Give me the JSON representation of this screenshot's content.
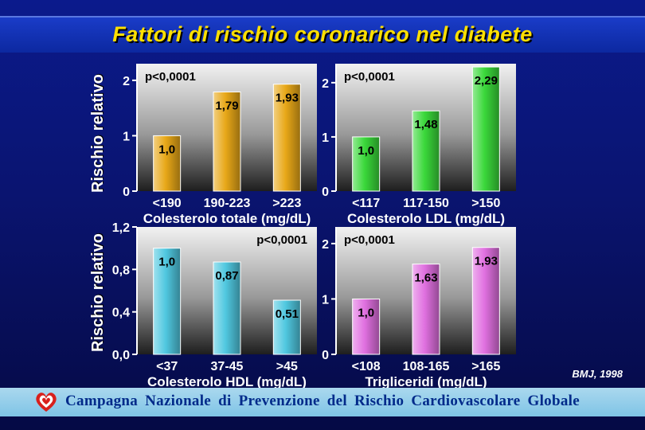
{
  "title": "Fattori di rischio coronarico nel diabete",
  "ylabel": "Rischio relativo",
  "citation": "BMJ, 1998",
  "footer": "Campagna Nazionale di Prevenzione del Rischio Cardiovascolare Globale",
  "chart_data": [
    {
      "type": "bar",
      "pvalue": "p<0,0001",
      "pvalue_position": "top-left",
      "xlabel": "Colesterolo totale (mg/dL)",
      "categories": [
        "<190",
        "190-223",
        ">223"
      ],
      "values": [
        1.0,
        1.79,
        1.93
      ],
      "value_labels": [
        "1,0",
        "1,79",
        "1,93"
      ],
      "yticks": [
        "0",
        "1",
        "2"
      ],
      "tick_values": [
        0,
        1,
        2
      ],
      "ylim": [
        0,
        2.3
      ],
      "bar_color": "#e8a818"
    },
    {
      "type": "bar",
      "pvalue": "p<0,0001",
      "pvalue_position": "top-left",
      "xlabel": "Colesterolo LDL (mg/dL)",
      "categories": [
        "<117",
        "117-150",
        ">150"
      ],
      "values": [
        1.0,
        1.48,
        2.29
      ],
      "value_labels": [
        "1,0",
        "1,48",
        "2,29"
      ],
      "yticks": [
        "0",
        "1",
        "2"
      ],
      "tick_values": [
        0,
        1,
        2
      ],
      "ylim": [
        0,
        2.35
      ],
      "bar_color": "#3ad83a"
    },
    {
      "type": "bar",
      "pvalue": "p<0,0001",
      "pvalue_position": "top-right",
      "xlabel": "Colesterolo HDL (mg/dL)",
      "categories": [
        "<37",
        "37-45",
        ">45"
      ],
      "values": [
        1.0,
        0.87,
        0.51
      ],
      "value_labels": [
        "1,0",
        "0,87",
        "0,51"
      ],
      "yticks": [
        "0,0",
        "0,4",
        "0,8",
        "1,2"
      ],
      "tick_values": [
        0,
        0.4,
        0.8,
        1.2
      ],
      "ylim": [
        0,
        1.2
      ],
      "bar_color": "#50c8e0"
    },
    {
      "type": "bar",
      "pvalue": "p<0,0001",
      "pvalue_position": "top-left",
      "xlabel": "Trigliceridi (mg/dL)",
      "categories": [
        "<108",
        "108-165",
        ">165"
      ],
      "values": [
        1.0,
        1.63,
        1.93
      ],
      "value_labels": [
        "1,0",
        "1,63",
        "1,93"
      ],
      "yticks": [
        "0",
        "1",
        "2"
      ],
      "tick_values": [
        0,
        1,
        2
      ],
      "ylim": [
        0,
        2.3
      ],
      "bar_color": "#e070e0"
    }
  ]
}
